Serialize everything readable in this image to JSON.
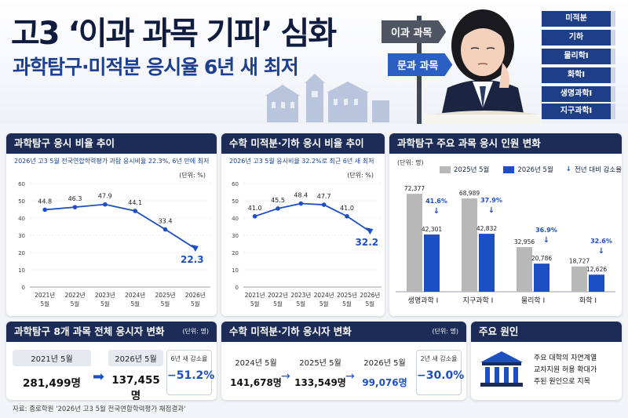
{
  "header": {
    "title": "고3 ‘이과 과목 기피’ 심화",
    "subtitle": "과학탐구·미적분 응시율 6년 새 최저",
    "sign_top": "이과 과목",
    "sign_bottom": "문과 과목",
    "books": [
      "미적분",
      "기하",
      "물리학Ⅰ",
      "화학Ⅰ",
      "생명과학Ⅰ",
      "지구과학Ⅰ"
    ]
  },
  "panels": {
    "science_rate": {
      "title": "과학탐구 응시 비율 추이",
      "note": "2026년 고3 5월 전국연합학력평가 과탐 응시비율 22.3%, 6년 만에 최저",
      "unit": "(단위: %)"
    },
    "math_rate": {
      "title": "수학 미적분·기하 응시 비율 추이",
      "note": "2026년 고3 5월 응시비율 32.2%로 최근 6년 새 최저",
      "unit": "(단위: %)"
    },
    "subjects": {
      "title": "과학탐구 주요 과목 응시 인원 변화",
      "unit": "(단위: 명)",
      "legend_2025": "2025년 5월",
      "legend_2026": "2026년 5월",
      "legend_arrow": "전년 대비 감소율"
    },
    "science_total": {
      "title": "과학탐구 8개 과목 전체 응시자 변화",
      "unit": "(단위: 명)",
      "from_label": "2021년 5월",
      "from_value": "281,499명",
      "to_label": "2026년 5월",
      "to_value": "137,455명",
      "change_label": "6년 새 감소율",
      "change_value": "−51.2%"
    },
    "math_total": {
      "title": "수학 미적분·기하 응시자 변화",
      "unit": "(단위: 명)",
      "y1_label": "2024년 5월",
      "y1_value": "141,678명",
      "y2_label": "2025년 5월",
      "y2_value": "133,549명",
      "y3_label": "2026년 5월",
      "y3_value": "99,076명",
      "change_label": "2년 새 감소율",
      "change_value": "−30.0%"
    },
    "cause": {
      "title": "주요 원인",
      "line1": "주요 대학의 자연계열",
      "line2": "교차지원 허용 확대가",
      "line3": "주된 원인으로 지목"
    }
  },
  "source": "자료: 종로학원 '2026년 고3 5월 전국연합학력평가 채점결과'",
  "colors": {
    "navy": "#1c2c57",
    "blue": "#1d4fc4",
    "gray": "#b8b8b8"
  },
  "chart_data": [
    {
      "type": "line",
      "title": "과학탐구 응시 비율 추이",
      "categories": [
        "2021년 5월",
        "2022년 5월",
        "2023년 5월",
        "2024년 5월",
        "2025년 5월",
        "2026년 5월"
      ],
      "values": [
        44.8,
        46.3,
        47.9,
        44.1,
        33.4,
        22.3
      ],
      "labels": [
        "44.8",
        "46.3",
        "47.9",
        "44.1",
        "33.4",
        "22.3"
      ],
      "yticks": [
        "0",
        "10",
        "20",
        "30",
        "40",
        "50",
        "60"
      ],
      "ylim": [
        0,
        60
      ]
    },
    {
      "type": "line",
      "title": "수학 미적분·기하 응시 비율 추이",
      "categories": [
        "2021년 5월",
        "2022년 5월",
        "2023년 5월",
        "2024년 5월",
        "2025년 5월",
        "2026년 5월"
      ],
      "values": [
        41.0,
        45.5,
        48.4,
        47.7,
        41.0,
        32.2
      ],
      "labels": [
        "41.0",
        "45.5",
        "48.4",
        "47.7",
        "41.0",
        "32.2"
      ],
      "yticks": [
        "0",
        "10",
        "20",
        "30",
        "40",
        "50",
        "60"
      ],
      "ylim": [
        0,
        60
      ]
    },
    {
      "type": "bar",
      "title": "과학탐구 주요 과목 응시 인원 변화",
      "categories": [
        "생명과학 Ⅰ",
        "지구과학 Ⅰ",
        "물리학 Ⅰ",
        "화학 Ⅰ"
      ],
      "series": [
        {
          "name": "2025년 5월",
          "values": [
            72377,
            68989,
            32956,
            18727
          ],
          "labels": [
            "72,377",
            "68,989",
            "32,956",
            "18,727"
          ]
        },
        {
          "name": "2026년 5월",
          "values": [
            42301,
            42832,
            20786,
            12626
          ],
          "labels": [
            "42,301",
            "42,832",
            "20,786",
            "12,626"
          ]
        }
      ],
      "decline": [
        "41.6%",
        "37.9%",
        "36.9%",
        "32.6%"
      ],
      "ylim": [
        0,
        80000
      ]
    }
  ]
}
